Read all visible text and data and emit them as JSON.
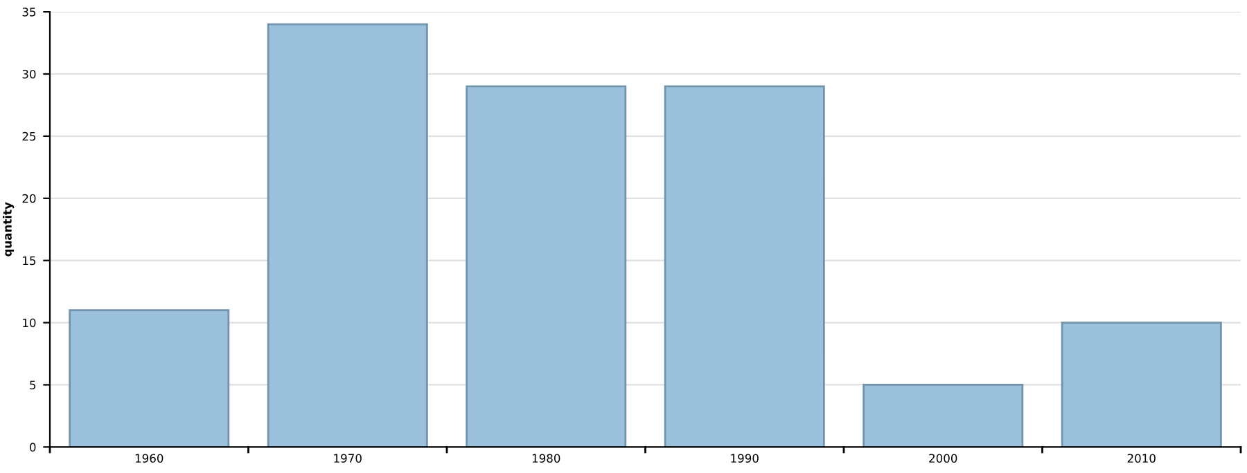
{
  "chart_data": {
    "type": "bar",
    "ylabel": "quantity",
    "categories": [
      "1960",
      "1970",
      "1980",
      "1990",
      "2000",
      "2010"
    ],
    "values": [
      11,
      34,
      29,
      29,
      5,
      10
    ],
    "color": "#9bc1dc",
    "ylim": [
      0,
      35
    ],
    "yticks": [
      0,
      5,
      10,
      15,
      20,
      25,
      30,
      35
    ],
    "grid": "y"
  }
}
